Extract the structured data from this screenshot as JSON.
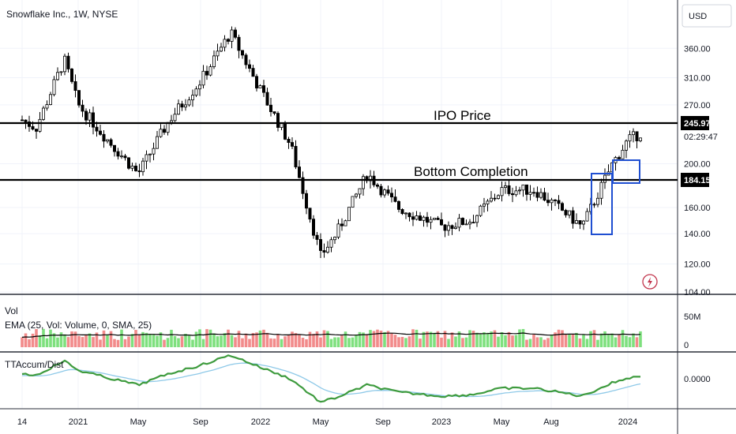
{
  "header": {
    "title": "Snowflake Inc., 1W, NYSE"
  },
  "currency": "USD",
  "countdown": "02:29:47",
  "chart_data": {
    "type": "candlestick",
    "title": "Snowflake Inc., 1W, NYSE",
    "y_axis": {
      "ticks": [
        360,
        310,
        270,
        200,
        160,
        140,
        120,
        104
      ],
      "tick_labels": [
        "360.00",
        "310.00",
        "270.00",
        "200.00",
        "160.00",
        "140.00",
        "120.00",
        "104.00"
      ],
      "scale": "log"
    },
    "x_axis": {
      "tick_labels": [
        "14",
        "2021",
        "May",
        "Sep",
        "2022",
        "May",
        "Sep",
        "2023",
        "May",
        "Aug",
        "2024"
      ]
    },
    "price_anchors": [
      {
        "date": "2020-09",
        "price": 250
      },
      {
        "date": "2020-10",
        "price": 240
      },
      {
        "date": "2020-12",
        "price": 340
      },
      {
        "date": "2021-01",
        "price": 270
      },
      {
        "date": "2021-03",
        "price": 225
      },
      {
        "date": "2021-05",
        "price": 190
      },
      {
        "date": "2021-07",
        "price": 250
      },
      {
        "date": "2021-09",
        "price": 305
      },
      {
        "date": "2021-11",
        "price": 390
      },
      {
        "date": "2022-01",
        "price": 290
      },
      {
        "date": "2022-03",
        "price": 220
      },
      {
        "date": "2022-05",
        "price": 125
      },
      {
        "date": "2022-06",
        "price": 140
      },
      {
        "date": "2022-08",
        "price": 190
      },
      {
        "date": "2022-10",
        "price": 160
      },
      {
        "date": "2023-01",
        "price": 145
      },
      {
        "date": "2023-03",
        "price": 150
      },
      {
        "date": "2023-05",
        "price": 175
      },
      {
        "date": "2023-07",
        "price": 175
      },
      {
        "date": "2023-09",
        "price": 155
      },
      {
        "date": "2023-10",
        "price": 145
      },
      {
        "date": "2023-12",
        "price": 200
      },
      {
        "date": "2024-01",
        "price": 225
      },
      {
        "date": "2024-02",
        "price": 235
      }
    ],
    "horizontal_lines": [
      {
        "name": "IPO Price",
        "label": "IPO Price",
        "value": 245.97,
        "value_label": "245.97"
      },
      {
        "name": "Bottom Completion",
        "label": "Bottom Completion",
        "value": 184.15,
        "value_label": "184.15"
      }
    ],
    "volume": {
      "title": "Vol",
      "ema_label": "EMA (25, Vol: Volume, 0, SMA, 25)",
      "y_ticks": [
        "50M",
        "0"
      ]
    },
    "indicator": {
      "title": "TTAccum/Dist",
      "y_ticks": [
        "0.0000"
      ]
    },
    "colors": {
      "up": "#ffffff",
      "down": "#000000",
      "vol_up": "#7ee07e",
      "vol_down": "#f28b8b",
      "ema": "#000000",
      "accum": "#3e9b3e",
      "accum_ma": "#8ec9e8",
      "box": "#1f4fd1",
      "alert": "#c2364d"
    }
  }
}
